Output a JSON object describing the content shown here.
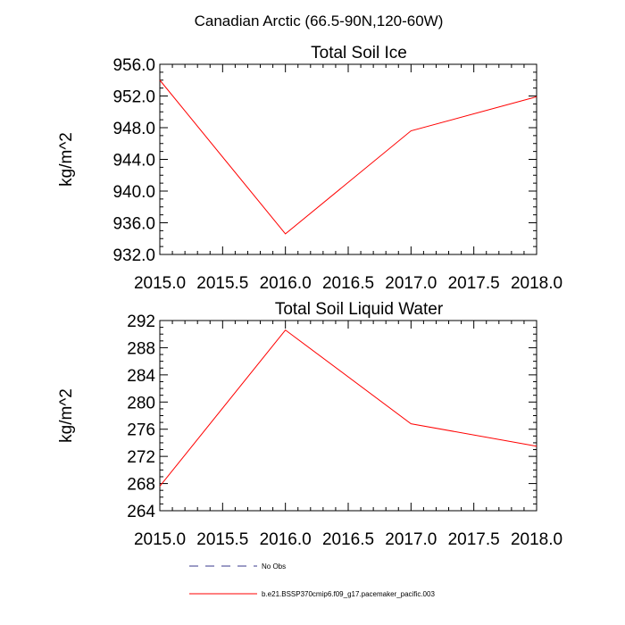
{
  "figure_title": "Canadian Arctic (66.5-90N,120-60W)",
  "legend": [
    {
      "label": "No Obs",
      "color": "#3a3a8c",
      "dash": true
    },
    {
      "label": "b.e21.BSSP370cmip6.f09_g17.pacemaker_pacific.003",
      "color": "#ff0000",
      "dash": false
    }
  ],
  "chart_data": [
    {
      "type": "line",
      "title": "Total Soil Ice",
      "xlabel": "",
      "ylabel": "kg/m^2",
      "x": [
        2015,
        2016,
        2017,
        2018
      ],
      "series": [
        {
          "name": "b.e21.BSSP370cmip6.f09_g17.pacemaker_pacific.003",
          "color": "#ff0000",
          "values": [
            954.0,
            934.6,
            947.6,
            951.9
          ]
        }
      ],
      "xlim": [
        2015,
        2018
      ],
      "ylim": [
        932,
        956
      ],
      "xticks": [
        "2015.0",
        "2015.5",
        "2016.0",
        "2016.5",
        "2017.0",
        "2017.5",
        "2018.0"
      ],
      "xtick_values": [
        2015,
        2015.5,
        2016,
        2016.5,
        2017,
        2017.5,
        2018
      ],
      "yticks": [
        "932.0",
        "936.0",
        "940.0",
        "944.0",
        "948.0",
        "952.0",
        "956.0"
      ],
      "ytick_values": [
        932,
        936,
        940,
        944,
        948,
        952,
        956
      ],
      "grid": false
    },
    {
      "type": "line",
      "title": "Total Soil Liquid Water",
      "xlabel": "",
      "ylabel": "kg/m^2",
      "x": [
        2015,
        2016,
        2017,
        2018
      ],
      "series": [
        {
          "name": "b.e21.BSSP370cmip6.f09_g17.pacemaker_pacific.003",
          "color": "#ff0000",
          "values": [
            267.6,
            290.6,
            276.8,
            273.5
          ]
        }
      ],
      "xlim": [
        2015,
        2018
      ],
      "ylim": [
        264,
        292
      ],
      "xticks": [
        "2015.0",
        "2015.5",
        "2016.0",
        "2016.5",
        "2017.0",
        "2017.5",
        "2018.0"
      ],
      "xtick_values": [
        2015,
        2015.5,
        2016,
        2016.5,
        2017,
        2017.5,
        2018
      ],
      "yticks": [
        "264",
        "268",
        "272",
        "276",
        "280",
        "284",
        "288",
        "292"
      ],
      "ytick_values": [
        264,
        268,
        272,
        276,
        280,
        284,
        288,
        292
      ],
      "grid": false
    }
  ]
}
